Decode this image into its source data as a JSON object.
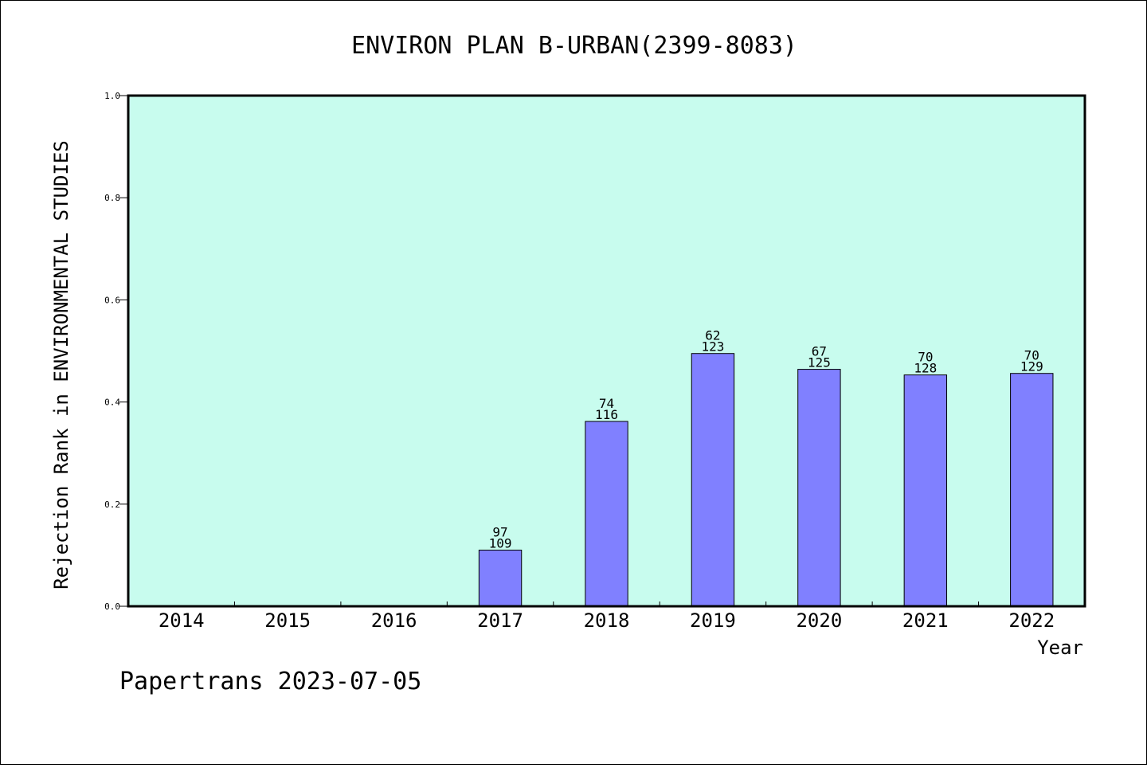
{
  "chart_data": {
    "type": "bar",
    "title": "ENVIRON PLAN B-URBAN(2399-8083)",
    "xlabel": "Year",
    "ylabel": "Rejection Rank in ENVIRONMENTAL STUDIES",
    "ylim": [
      0,
      1.0
    ],
    "yticks": [
      "0.0",
      "0.2",
      "0.4",
      "0.6",
      "0.8",
      "1.0"
    ],
    "categories": [
      "2014",
      "2015",
      "2016",
      "2017",
      "2018",
      "2019",
      "2020",
      "2021",
      "2022"
    ],
    "values": [
      0,
      0,
      0,
      0.11,
      0.362,
      0.495,
      0.464,
      0.453,
      0.456
    ],
    "labels_top": [
      "",
      "",
      "",
      "97",
      "74",
      "62",
      "67",
      "70",
      "70"
    ],
    "labels_bottom": [
      "",
      "",
      "",
      "109",
      "116",
      "123",
      "125",
      "128",
      "129"
    ],
    "colors": {
      "plot_bg": "#c8fcee",
      "bar": "#8080ff"
    },
    "grid": false
  },
  "footer": "Papertrans 2023-07-05"
}
